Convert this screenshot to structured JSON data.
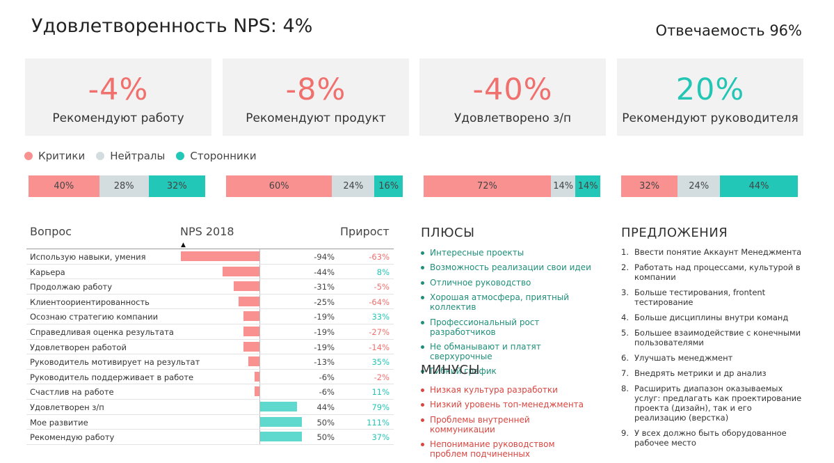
{
  "header": {
    "title": "Удовлетворенность NPS: 4%",
    "response_rate": "Отвечаемость 96%"
  },
  "colors": {
    "critics": "#f99191",
    "neutrals": "#d3dde0",
    "supporters": "#22c7b8",
    "negative_text": "#f0706e",
    "positive_text": "#23c5b4"
  },
  "kpis": [
    {
      "value": "-4%",
      "label": "Рекомендуют работу",
      "color": "#f0706e"
    },
    {
      "value": "-8%",
      "label": "Рекомендуют продукт",
      "color": "#f0706e"
    },
    {
      "value": "-40%",
      "label": "Удовлетворено з/п",
      "color": "#f0706e"
    },
    {
      "value": "20%",
      "label": "Рекомендуют руководителя",
      "color": "#23c5b4"
    }
  ],
  "legend": [
    "Критики",
    "Нейтралы",
    "Сторонники"
  ],
  "distribution": [
    {
      "critics": 40,
      "neutrals": 28,
      "supporters": 32,
      "labels": [
        "40%",
        "28%",
        "32%"
      ]
    },
    {
      "critics": 60,
      "neutrals": 24,
      "supporters": 16,
      "labels": [
        "60%",
        "24%",
        "16%"
      ]
    },
    {
      "critics": 72,
      "neutrals": 14,
      "supporters": 14,
      "labels": [
        "72%",
        "14%",
        "14%"
      ]
    },
    {
      "critics": 32,
      "neutrals": 24,
      "supporters": 44,
      "labels": [
        "32%",
        "24%",
        "44%"
      ]
    }
  ],
  "table": {
    "headers": {
      "question": "Вопрос",
      "nps": "NPS 2018",
      "growth": "Прирост"
    },
    "rows": [
      {
        "question": "Использую навыки, умения",
        "nps": -94,
        "nps_label": "-94%",
        "growth": "-63%",
        "growth_sign": "neg"
      },
      {
        "question": "Карьера",
        "nps": -44,
        "nps_label": "-44%",
        "growth": "8%",
        "growth_sign": "pos"
      },
      {
        "question": "Продолжаю работу",
        "nps": -31,
        "nps_label": "-31%",
        "growth": "-5%",
        "growth_sign": "neg"
      },
      {
        "question": "Клиентоориентированность",
        "nps": -25,
        "nps_label": "-25%",
        "growth": "-64%",
        "growth_sign": "neg"
      },
      {
        "question": "Осознаю стратегию компании",
        "nps": -19,
        "nps_label": "-19%",
        "growth": "33%",
        "growth_sign": "pos"
      },
      {
        "question": "Справедливая оценка результата",
        "nps": -19,
        "nps_label": "-19%",
        "growth": "-27%",
        "growth_sign": "neg"
      },
      {
        "question": "Удовлетворен работой",
        "nps": -19,
        "nps_label": "-19%",
        "growth": "-14%",
        "growth_sign": "neg"
      },
      {
        "question": "Руководитель мотивирует на результат",
        "nps": -13,
        "nps_label": "-13%",
        "growth": "35%",
        "growth_sign": "pos"
      },
      {
        "question": "Руководитель поддерживает в работе",
        "nps": -6,
        "nps_label": "-6%",
        "growth": "-2%",
        "growth_sign": "neg"
      },
      {
        "question": "Счастлив на работе",
        "nps": -6,
        "nps_label": "-6%",
        "growth": "11%",
        "growth_sign": "pos"
      },
      {
        "question": "Удовлетворен з/п",
        "nps": 44,
        "nps_label": "44%",
        "growth": "79%",
        "growth_sign": "pos"
      },
      {
        "question": "Мое развитие",
        "nps": 50,
        "nps_label": "50%",
        "growth": "111%",
        "growth_sign": "pos"
      },
      {
        "question": "Рекомендую работу",
        "nps": 50,
        "nps_label": "50%",
        "growth": "37%",
        "growth_sign": "pos"
      }
    ]
  },
  "pros": {
    "title": "ПЛЮСЫ",
    "items": [
      "Интересные проекты",
      "Возможность реализации свои идеи",
      "Отличное руководство",
      "Хорошая атмосфера, приятный коллектив",
      "Профессиональный рост разработчиков",
      "Не обманывают и платят сверхурочные",
      "Гибкий график"
    ]
  },
  "cons": {
    "title": "МИНУСЫ",
    "items": [
      "Низкая культура разработки",
      "Низкий уровень топ-менеджмента",
      "Проблемы внутренней коммуникации",
      "Непонимание руководством проблем подчиненных"
    ]
  },
  "suggestions": {
    "title": "ПРЕДЛОЖЕНИЯ",
    "items": [
      "Ввести понятие Аккаунт Менеджмента",
      "Работать над процессами, культурой в компании",
      "Больше тестирования, frontent тестирование",
      "Больше дисциплины внутри команд",
      "Большее взаимодействие с конечными пользователями",
      "Улучшать менеджмент",
      "Внедрять метрики и др анализ",
      "Расширить диапазон оказываемых услуг: предлагать как проектирование проекта (дизайн), так и его реализацию (верстка)",
      "У всех должно быть оборудованное рабочее место"
    ]
  }
}
